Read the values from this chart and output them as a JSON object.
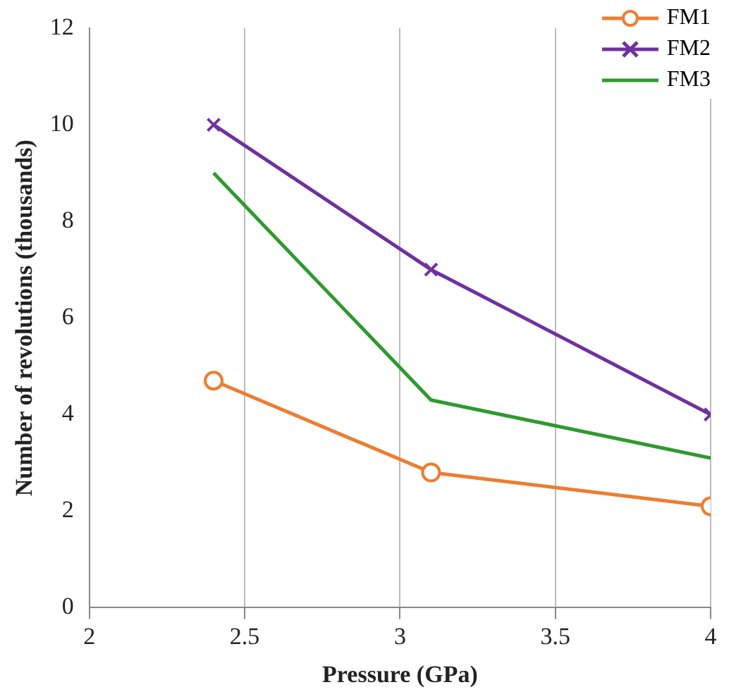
{
  "chart_data": {
    "type": "line",
    "xlabel": "Pressure (GPa)",
    "ylabel": "Number of revolutions (thousands)",
    "xlim": [
      2,
      4
    ],
    "xticks": [
      2,
      2.5,
      3,
      3.5,
      4
    ],
    "ylim": [
      0,
      12
    ],
    "yticks": [
      0,
      2,
      4,
      6,
      8,
      10,
      12
    ],
    "grid": "x",
    "legend": "top right",
    "line_style": "solid",
    "series": [
      {
        "name": "FM1",
        "color": "#ed7d31",
        "marker": "circle",
        "x": [
          2.4,
          3.1,
          4
        ],
        "values": [
          4.7,
          2.8,
          2.1
        ]
      },
      {
        "name": "FM2",
        "color": "#7030a0",
        "marker": "cross",
        "x": [
          2.4,
          3.1,
          4
        ],
        "values": [
          10,
          7,
          4
        ]
      },
      {
        "name": "FM3",
        "color": "#2e9a2e",
        "marker": "none",
        "x": [
          2.4,
          3.1,
          4
        ],
        "values": [
          9,
          4.3,
          3.1
        ]
      }
    ]
  }
}
